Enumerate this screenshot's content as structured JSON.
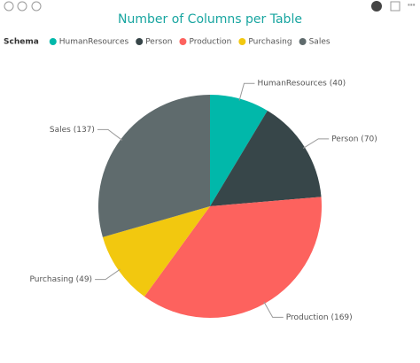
{
  "chart_data": {
    "type": "pie",
    "title": "Number of Columns per Table",
    "legend_title": "Schema",
    "categories": [
      "HumanResources",
      "Person",
      "Production",
      "Purchasing",
      "Sales"
    ],
    "values": [
      40,
      70,
      169,
      49,
      137
    ],
    "value_labels": [
      "HumanResources (40)",
      "Person (70)",
      "Production (169)",
      "Purchasing (49)",
      "Sales (137)"
    ],
    "colors": [
      "#01b8aa",
      "#374649",
      "#fd625e",
      "#f2c80f",
      "#5f6b6d"
    ]
  }
}
